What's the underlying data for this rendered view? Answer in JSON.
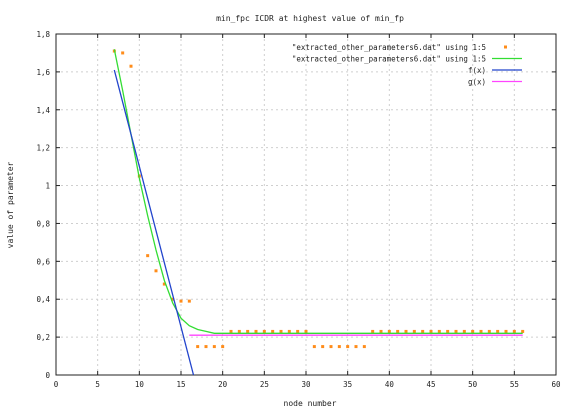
{
  "chart_data": {
    "type": "line",
    "title": "min_fpc ICDR at highest value of min_fp",
    "xlabel": "node number",
    "ylabel": "value of parameter",
    "xlim": [
      0,
      60
    ],
    "ylim": [
      0,
      1.8
    ],
    "xticks": [
      0,
      5,
      10,
      15,
      20,
      25,
      30,
      35,
      40,
      45,
      50,
      55,
      60
    ],
    "yticks": [
      0,
      0.2,
      0.4,
      0.6,
      0.8,
      1,
      1.2,
      1.4,
      1.6,
      1.8
    ],
    "xtick_labels": [
      "0",
      "5",
      "10",
      "15",
      "20",
      "25",
      "30",
      "35",
      "40",
      "45",
      "50",
      "55",
      "60"
    ],
    "ytick_labels": [
      "0",
      "0,2",
      "0,4",
      "0,6",
      "0,8",
      "1",
      "1,2",
      "1,4",
      "1,6",
      "1,8"
    ],
    "grid": true,
    "legend_position": "top-right",
    "series": [
      {
        "name": "\"extracted_other_parameters6.dat\" using 1:5",
        "style": "points",
        "color": "#ff8c1a",
        "x": [
          7,
          8,
          9,
          10,
          11,
          12,
          13,
          14,
          15,
          16,
          17,
          18,
          19,
          20,
          21,
          22,
          23,
          24,
          25,
          26,
          27,
          28,
          29,
          30,
          31,
          32,
          33,
          34,
          35,
          36,
          37,
          38,
          39,
          40,
          41,
          42,
          43,
          44,
          45,
          46,
          47,
          48,
          49,
          50,
          51,
          52,
          53,
          54,
          55,
          56
        ],
        "y": [
          1.71,
          1.7,
          1.63,
          1.05,
          0.63,
          0.55,
          0.48,
          0.4,
          0.39,
          0.39,
          0.15,
          0.15,
          0.15,
          0.15,
          0.23,
          0.23,
          0.23,
          0.23,
          0.23,
          0.23,
          0.23,
          0.23,
          0.23,
          0.23,
          0.15,
          0.15,
          0.15,
          0.15,
          0.15,
          0.15,
          0.15,
          0.23,
          0.23,
          0.23,
          0.23,
          0.23,
          0.23,
          0.23,
          0.23,
          0.23,
          0.23,
          0.23,
          0.23,
          0.23,
          0.23,
          0.23,
          0.23,
          0.23,
          0.23,
          0.23
        ]
      },
      {
        "name": "\"extracted_other_parameters6.dat\" using 1:5",
        "style": "line",
        "color": "#33dd33",
        "x": [
          7,
          8,
          9,
          10,
          11,
          12,
          13,
          14,
          15,
          16,
          17,
          18,
          19,
          20,
          22,
          25,
          30,
          35,
          40,
          45,
          50,
          55,
          56
        ],
        "y": [
          1.72,
          1.5,
          1.27,
          1.04,
          0.84,
          0.66,
          0.5,
          0.38,
          0.3,
          0.26,
          0.24,
          0.23,
          0.22,
          0.22,
          0.22,
          0.22,
          0.22,
          0.22,
          0.22,
          0.22,
          0.22,
          0.22,
          0.22
        ]
      },
      {
        "name": "f(x)",
        "style": "line",
        "color": "#2244cc",
        "x": [
          7,
          16.5
        ],
        "y": [
          1.61,
          0.0
        ]
      },
      {
        "name": "g(x)",
        "style": "line",
        "color": "#ff44ff",
        "x": [
          16,
          56
        ],
        "y": [
          0.21,
          0.21
        ]
      }
    ]
  }
}
